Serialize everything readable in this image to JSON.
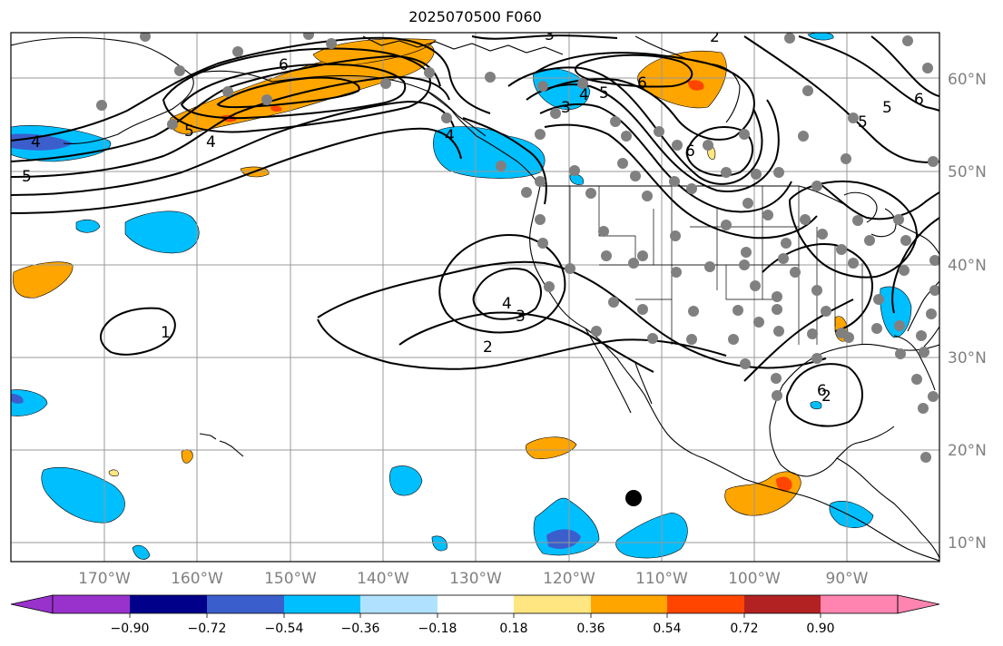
{
  "title": "2025070500 F060",
  "map": {
    "projection": "lat-lon",
    "extent": {
      "lon": [
        -180,
        -80
      ],
      "lat": [
        8,
        66
      ]
    },
    "lon_labels": [
      "170°W",
      "160°W",
      "150°W",
      "140°W",
      "130°W",
      "120°W",
      "110°W",
      "100°W",
      "90°W"
    ],
    "lat_labels": [
      "60°N",
      "50°N",
      "40°N",
      "30°N",
      "20°N",
      "10°N"
    ],
    "grid": true
  },
  "contours": {
    "color": "#000000",
    "labels": [
      "3",
      "2",
      "6",
      "5",
      "4",
      "3",
      "4",
      "5",
      "6",
      "5",
      "6",
      "5",
      "4",
      "4",
      "5",
      "6",
      "1",
      "4",
      "3",
      "2",
      "6",
      "2"
    ]
  },
  "shading": {
    "colors": {
      "purple": "#9932cc",
      "navy": "#00008b",
      "royal": "#3a5fcd",
      "blue": "#00bfff",
      "lightblue": "#b0e2ff",
      "yellow": "#ffe680",
      "orange": "#ffa500",
      "redorange": "#ff4500",
      "firebrick": "#b22222",
      "pink": "#ff85b0"
    }
  },
  "markers": {
    "gray_dot": "#808080",
    "black_dot": "#000000"
  },
  "colorbar": {
    "ticks": [
      "−0.90",
      "−0.72",
      "−0.54",
      "−0.36",
      "−0.18",
      "0.18",
      "0.36",
      "0.54",
      "0.72",
      "0.90"
    ],
    "colors": [
      "#9932cc",
      "#00008b",
      "#3a5fcd",
      "#00bfff",
      "#b0e2ff",
      "#ffffff",
      "#ffe680",
      "#ffa500",
      "#ff4500",
      "#b22222",
      "#ff85b0"
    ]
  }
}
